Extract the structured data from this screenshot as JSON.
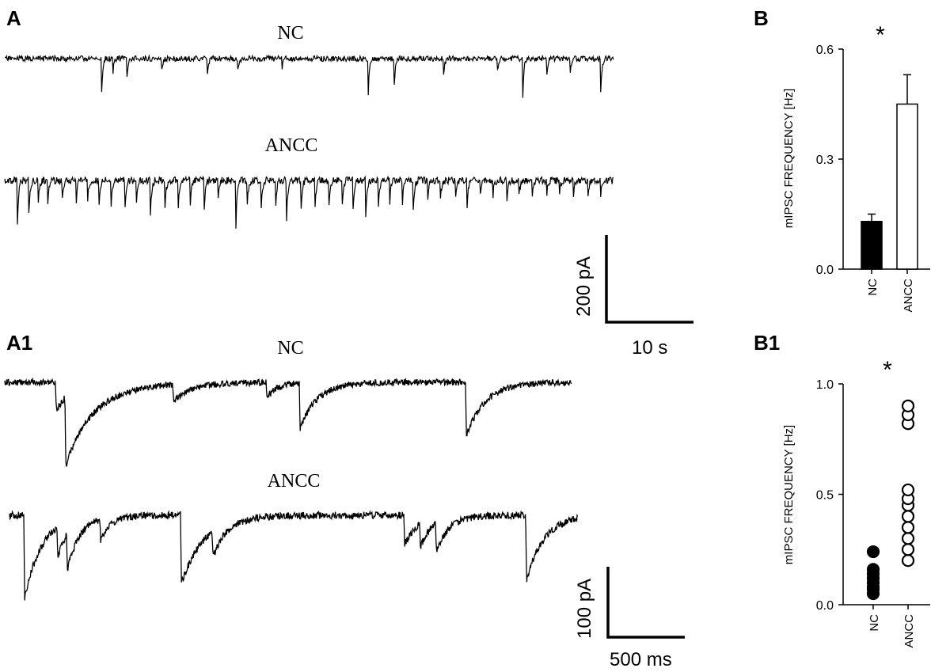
{
  "panels": {
    "a": {
      "letter": "A",
      "trace_labels": [
        "NC",
        "ANCC"
      ],
      "scale_bar": {
        "vertical": "200 pA",
        "horizontal": "10 s"
      }
    },
    "a1": {
      "letter": "A1",
      "trace_labels": [
        "NC",
        "ANCC"
      ],
      "scale_bar": {
        "vertical": "100 pA",
        "horizontal": "500 ms"
      }
    },
    "b": {
      "letter": "B",
      "significance": "*"
    },
    "b1": {
      "letter": "B1",
      "significance": "*"
    }
  },
  "chart_data": [
    {
      "type": "bar",
      "panel": "B",
      "categories": [
        "NC",
        "ANCC"
      ],
      "values": [
        0.13,
        0.45
      ],
      "errors": [
        0.02,
        0.08
      ],
      "bar_colors": [
        "#000000",
        "#ffffff"
      ],
      "ylabel": "mIPSC FREQUENCY [Hz]",
      "xlabel": "",
      "ylim": [
        0,
        0.6
      ],
      "yticks": [
        0.0,
        0.3,
        0.6
      ],
      "ytick_labels": [
        "0.0",
        "0.3",
        "0.6"
      ],
      "annotation": "*"
    },
    {
      "type": "scatter",
      "panel": "B1",
      "categories": [
        "NC",
        "ANCC"
      ],
      "series": [
        {
          "category": "NC",
          "marker": "filled-circle",
          "values": [
            0.05,
            0.07,
            0.08,
            0.1,
            0.12,
            0.14,
            0.16,
            0.24
          ]
        },
        {
          "category": "ANCC",
          "marker": "open-circle",
          "values": [
            0.2,
            0.25,
            0.3,
            0.35,
            0.4,
            0.45,
            0.48,
            0.52,
            0.82,
            0.86,
            0.9
          ]
        }
      ],
      "ylabel": "mIPSC FREQUENCY [Hz]",
      "xlabel": "",
      "ylim": [
        0,
        1.0
      ],
      "yticks": [
        0.0,
        0.5,
        1.0
      ],
      "ytick_labels": [
        "0.0",
        "0.5",
        "1.0"
      ],
      "annotation": "*"
    }
  ],
  "colors": {
    "trace": "#000000",
    "background": "#ffffff"
  }
}
